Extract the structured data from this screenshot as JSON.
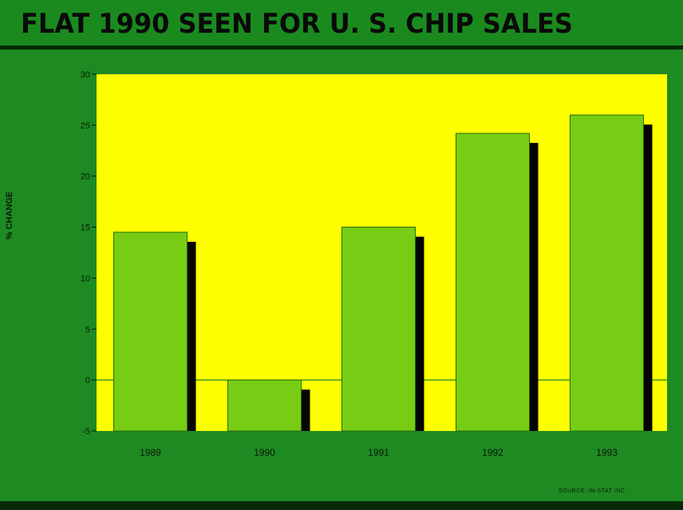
{
  "chart_data": {
    "type": "bar",
    "title": "FLAT 1990 SEEN FOR U. S. CHIP SALES",
    "ylabel": "% CHANGE",
    "xlabel": "",
    "categories": [
      "1989",
      "1990",
      "1991",
      "1992",
      "1993"
    ],
    "values": [
      14.5,
      -0.2,
      15,
      24.2,
      26
    ],
    "ylim": [
      -5,
      30
    ],
    "yticks": [
      "30",
      "25",
      "20",
      "15",
      "10",
      "5",
      "0",
      "-5"
    ],
    "source": "SOURCE: IN-STAT INC",
    "grid": false,
    "colors": {
      "plot_background": "#ffff00",
      "bar_fill": "#77cc14",
      "bar_shadow": "#050505",
      "frame": "#1e8a22"
    }
  }
}
